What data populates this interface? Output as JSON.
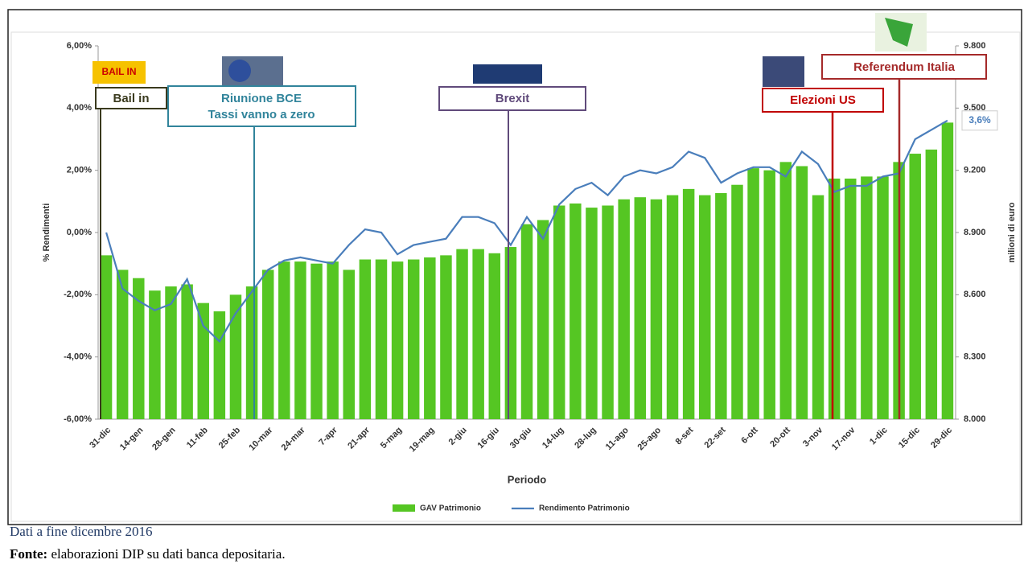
{
  "chart_data": {
    "type": "bar-line",
    "x_label": "Periodo",
    "y_label": "% Rendimenti",
    "y2_label": "milioni di euro",
    "categories": [
      "31-dic",
      null,
      "14-gen",
      null,
      "28-gen",
      null,
      "11-feb",
      null,
      "25-feb",
      null,
      "10-mar",
      null,
      "24-mar",
      null,
      "7-apr",
      null,
      "21-apr",
      null,
      "5-mag",
      null,
      "19-mag",
      null,
      "2-giu",
      null,
      "16-giu",
      null,
      "30-giu",
      null,
      "14-lug",
      null,
      "28-lug",
      null,
      "11-ago",
      null,
      "25-ago",
      null,
      "8-set",
      null,
      "22-set",
      null,
      "6-ott",
      null,
      "20-ott",
      null,
      "3-nov",
      null,
      "17-nov",
      null,
      "1-dic",
      null,
      "15-dic",
      null,
      "29-dic"
    ],
    "series": [
      {
        "name": "GAV Patrimonio",
        "type": "bar",
        "axis": "y2",
        "color": "#55c623",
        "values": [
          8790,
          8720,
          8680,
          8620,
          8640,
          8650,
          8560,
          8520,
          8600,
          8640,
          8720,
          8760,
          8760,
          8750,
          8760,
          8720,
          8770,
          8770,
          8760,
          8770,
          8780,
          8790,
          8820,
          8820,
          8800,
          8830,
          8940,
          8960,
          9030,
          9040,
          9020,
          9030,
          9060,
          9070,
          9060,
          9080,
          9110,
          9080,
          9090,
          9130,
          9210,
          9200,
          9240,
          9220,
          9080,
          9160,
          9160,
          9170,
          9170,
          9240,
          9280,
          9300,
          9430
        ]
      },
      {
        "name": "Rendimento Patrimonio",
        "type": "line",
        "axis": "y",
        "color": "#4a7ebb",
        "end_label": "3,6%",
        "values": [
          0.0,
          -1.8,
          -2.2,
          -2.5,
          -2.3,
          -1.5,
          -3.0,
          -3.5,
          -2.6,
          -1.9,
          -1.2,
          -0.9,
          -0.8,
          -0.9,
          -1.0,
          -0.4,
          0.1,
          0.0,
          -0.7,
          -0.4,
          -0.3,
          -0.2,
          0.5,
          0.5,
          0.3,
          -0.4,
          0.5,
          -0.2,
          0.9,
          1.4,
          1.6,
          1.2,
          1.8,
          2.0,
          1.9,
          2.1,
          2.6,
          2.4,
          1.6,
          1.9,
          2.1,
          2.1,
          1.8,
          2.6,
          2.2,
          1.3,
          1.5,
          1.5,
          1.8,
          1.9,
          3.0,
          3.3,
          3.6
        ]
      }
    ],
    "ylim": [
      -6,
      6
    ],
    "yticks": [
      {
        "value": -6,
        "label": "-6,00%"
      },
      {
        "value": -4,
        "label": "-4,00%"
      },
      {
        "value": -2,
        "label": "-2,00%"
      },
      {
        "value": 0,
        "label": "0,00%"
      },
      {
        "value": 2,
        "label": "2,00%"
      },
      {
        "value": 4,
        "label": "4,00%"
      },
      {
        "value": 6,
        "label": "6,00%"
      }
    ],
    "y2lim": [
      8000,
      9800
    ],
    "y2ticks": [
      {
        "value": 8000,
        "label": "8.000"
      },
      {
        "value": 8300,
        "label": "8.300"
      },
      {
        "value": 8600,
        "label": "8.600"
      },
      {
        "value": 8900,
        "label": "8.900"
      },
      {
        "value": 9200,
        "label": "9.200"
      },
      {
        "value": 9500,
        "label": "9.500"
      },
      {
        "value": 9800,
        "label": "9.800"
      }
    ],
    "grid": false,
    "legend": "bottom",
    "annotations": {
      "bail_in_icon": "BAIL IN",
      "bail_in": "Bail in",
      "bce_1": "Riunione BCE",
      "bce_2": "Tassi vanno a zero",
      "brexit": "Brexit",
      "elezioni": "Elezioni US",
      "referendum": "Referendum Italia"
    }
  },
  "notes": {
    "date": "Dati a fine dicembre 2016",
    "source_label": "Fonte:",
    "source": " elaborazioni DIP su dati banca depositaria."
  }
}
